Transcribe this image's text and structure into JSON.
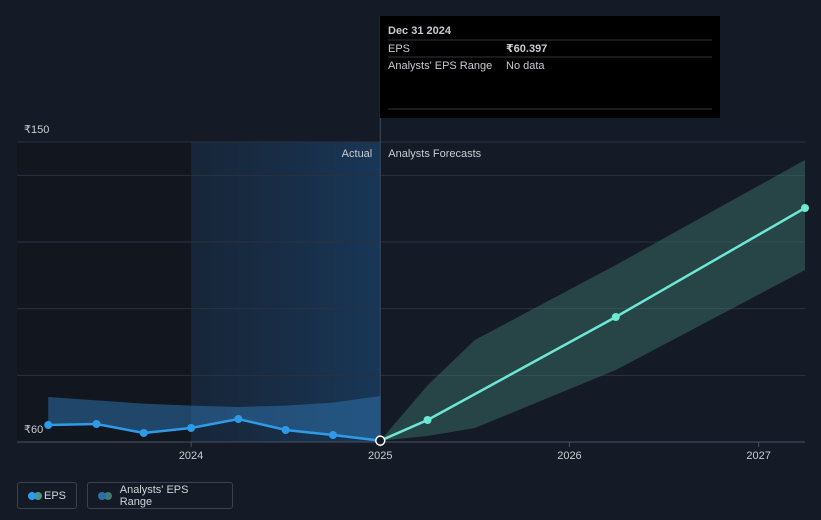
{
  "chart_data": {
    "type": "line",
    "xlim": [
      2023.08,
      2027.245
    ],
    "xticks": [
      2024,
      2025,
      2026,
      2027
    ],
    "ylim": [
      60,
      150
    ],
    "yticks": [
      {
        "value": 150,
        "label": "₹150"
      },
      {
        "value": 60,
        "label": "₹60"
      }
    ],
    "gridlines": [
      150,
      140,
      120,
      100,
      80,
      60
    ],
    "annotations": {
      "actual": "Actual",
      "forecast": "Analysts Forecasts"
    },
    "series": [
      {
        "name": "EPS",
        "color": "#2f9be8",
        "x": [
          2023.245,
          2023.5,
          2023.75,
          2024.0,
          2024.25,
          2024.5,
          2024.75,
          2025.0
        ],
        "values": [
          65.1,
          65.4,
          62.7,
          64.2,
          66.9,
          63.6,
          62.1,
          60.397
        ],
        "forecast_color": "#6ee7d5",
        "forecast_x": [
          2025.0,
          2025.25,
          2026.245,
          2027.245
        ],
        "forecast_values": [
          60.397,
          66.6,
          97.5,
          130.2
        ]
      },
      {
        "name": "Analysts' EPS Range",
        "color": "#2d6fa8",
        "forecast_color": "#3e7a72",
        "x": [
          2023.245,
          2023.5,
          2023.75,
          2024.0,
          2024.25,
          2024.5,
          2024.75,
          2025.0
        ],
        "low": [
          65.1,
          65.4,
          62.7,
          64.2,
          66.9,
          63.6,
          62.1,
          60.397
        ],
        "high": [
          73.5,
          72.5,
          71.5,
          70.9,
          70.5,
          70.9,
          71.8,
          73.8
        ],
        "forecast_x": [
          2025.0,
          2025.25,
          2025.5,
          2026.245,
          2027.245
        ],
        "forecast_low": [
          60.397,
          61.8,
          64.2,
          81.6,
          111.6
        ],
        "forecast_high": [
          60.397,
          77,
          90.6,
          113.1,
          144.6
        ]
      }
    ],
    "tooltip": {
      "date": "Dec 31 2024",
      "rows": [
        {
          "label": "EPS",
          "value": 60.397,
          "value_label": "₹60.397"
        },
        {
          "label": "Analysts' EPS Range",
          "value_label": "No data"
        }
      ]
    }
  }
}
